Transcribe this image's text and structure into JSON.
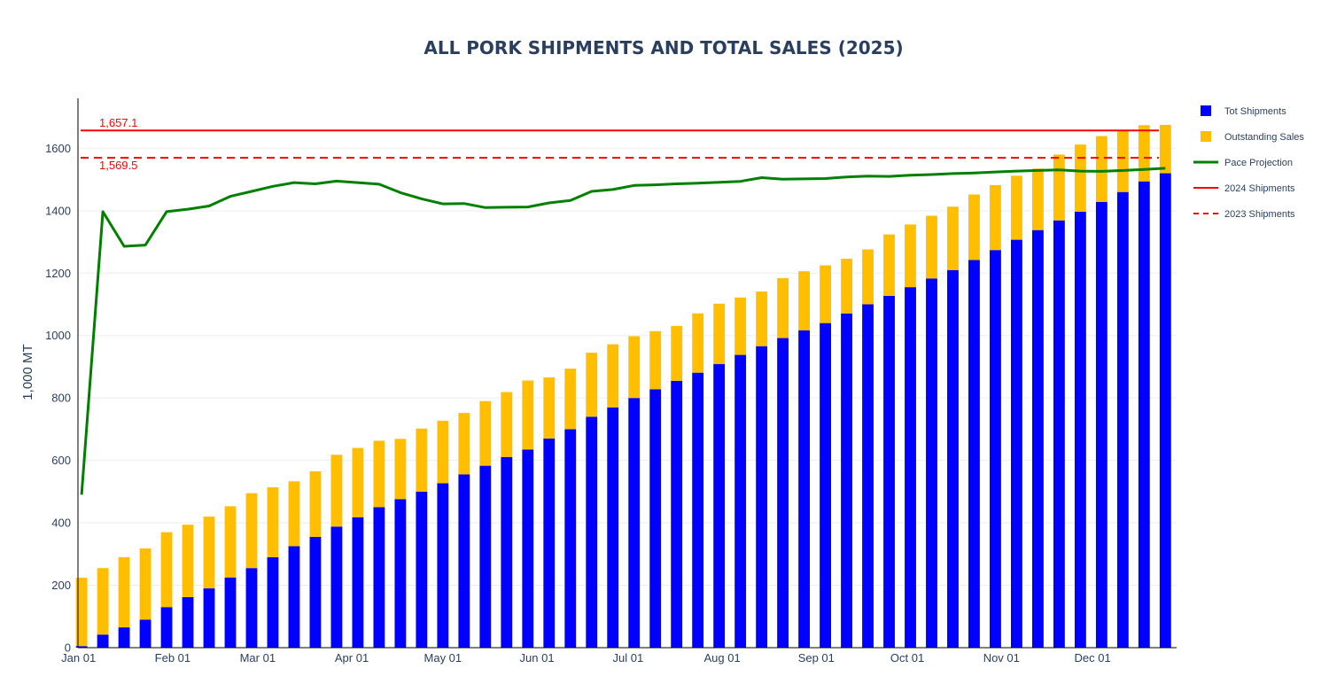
{
  "chart_data": {
    "type": "bar",
    "barmode": "stack",
    "title": "ALL PORK SHIPMENTS AND TOTAL SALES (2025)",
    "ylabel": "1,000 MT",
    "xlabel": "",
    "ylim": [
      0,
      1760
    ],
    "x_start": "2025-01-01",
    "x_end": "2025-12-25",
    "x_ticks": [
      {
        "date": "2025-01-01",
        "label": "Jan 01"
      },
      {
        "date": "2025-02-01",
        "label": "Feb 01"
      },
      {
        "date": "2025-03-01",
        "label": "Mar 01"
      },
      {
        "date": "2025-04-01",
        "label": "Apr 01"
      },
      {
        "date": "2025-05-01",
        "label": "May 01"
      },
      {
        "date": "2025-06-01",
        "label": "Jun 01"
      },
      {
        "date": "2025-07-01",
        "label": "Jul 01"
      },
      {
        "date": "2025-08-01",
        "label": "Aug 01"
      },
      {
        "date": "2025-09-01",
        "label": "Sep 01"
      },
      {
        "date": "2025-10-01",
        "label": "Oct 01"
      },
      {
        "date": "2025-11-01",
        "label": "Nov 01"
      },
      {
        "date": "2025-12-01",
        "label": "Dec 01"
      }
    ],
    "y_ticks": [
      0,
      200,
      400,
      600,
      800,
      1000,
      1200,
      1400,
      1600
    ],
    "grid": true,
    "legend_position": "right",
    "dates": [
      "2025-01-02",
      "2025-01-09",
      "2025-01-16",
      "2025-01-23",
      "2025-01-30",
      "2025-02-06",
      "2025-02-13",
      "2025-02-20",
      "2025-02-27",
      "2025-03-06",
      "2025-03-13",
      "2025-03-20",
      "2025-03-27",
      "2025-04-03",
      "2025-04-10",
      "2025-04-17",
      "2025-04-24",
      "2025-05-01",
      "2025-05-08",
      "2025-05-15",
      "2025-05-22",
      "2025-05-29",
      "2025-06-05",
      "2025-06-12",
      "2025-06-19",
      "2025-06-26",
      "2025-07-03",
      "2025-07-10",
      "2025-07-17",
      "2025-07-24",
      "2025-07-31",
      "2025-08-07",
      "2025-08-14",
      "2025-08-21",
      "2025-08-28",
      "2025-09-04",
      "2025-09-11",
      "2025-09-18",
      "2025-09-25",
      "2025-10-02",
      "2025-10-09",
      "2025-10-16",
      "2025-10-23",
      "2025-10-30",
      "2025-11-06",
      "2025-11-13",
      "2025-11-20",
      "2025-11-27",
      "2025-12-04",
      "2025-12-11",
      "2025-12-18",
      "2025-12-25"
    ],
    "series": [
      {
        "name": "Tot Shipments",
        "kind": "bar",
        "color": "#0000ff",
        "values": [
          5,
          42,
          65,
          90,
          130,
          162,
          190,
          225,
          255,
          290,
          325,
          355,
          388,
          418,
          450,
          476,
          500,
          527,
          555,
          583,
          611,
          635,
          670,
          700,
          740,
          770,
          800,
          828,
          855,
          881,
          909,
          938,
          966,
          992,
          1017,
          1040,
          1071,
          1100,
          1127,
          1155,
          1183,
          1210,
          1242,
          1274,
          1307,
          1338,
          1369,
          1397,
          1428,
          1460,
          1494,
          1520
        ]
      },
      {
        "name": "Outstanding Sales",
        "kind": "bar",
        "color": "#ffbf00",
        "values": [
          219,
          213,
          225,
          228,
          240,
          232,
          230,
          228,
          240,
          224,
          208,
          210,
          230,
          222,
          213,
          193,
          202,
          200,
          197,
          207,
          208,
          221,
          196,
          194,
          205,
          202,
          198,
          186,
          176,
          190,
          193,
          184,
          175,
          192,
          189,
          185,
          175,
          176,
          197,
          201,
          201,
          203,
          210,
          208,
          205,
          197,
          211,
          215,
          211,
          196,
          180,
          155
        ]
      },
      {
        "name": "Pace Projection",
        "kind": "line",
        "color": "#008000",
        "values": [
          490,
          1397,
          1286,
          1290,
          1397,
          1405,
          1415,
          1446,
          1462,
          1478,
          1490,
          1486,
          1495,
          1490,
          1485,
          1458,
          1438,
          1422,
          1423,
          1410,
          1411,
          1412,
          1425,
          1433,
          1462,
          1468,
          1481,
          1483,
          1486,
          1488,
          1491,
          1494,
          1506,
          1501,
          1502,
          1503,
          1508,
          1511,
          1510,
          1514,
          1516,
          1519,
          1521,
          1524,
          1527,
          1529,
          1531,
          1527,
          1526,
          1529,
          1532,
          1536
        ]
      },
      {
        "name": "2024 Shipments",
        "kind": "hline",
        "color": "#ff0000",
        "dash": "solid",
        "value": 1657.1,
        "label": "1,657.1"
      },
      {
        "name": "2023 Shipments",
        "kind": "hline",
        "color": "#ff0000",
        "dash": "dash",
        "value": 1569.5,
        "label": "1,569.5"
      }
    ]
  }
}
